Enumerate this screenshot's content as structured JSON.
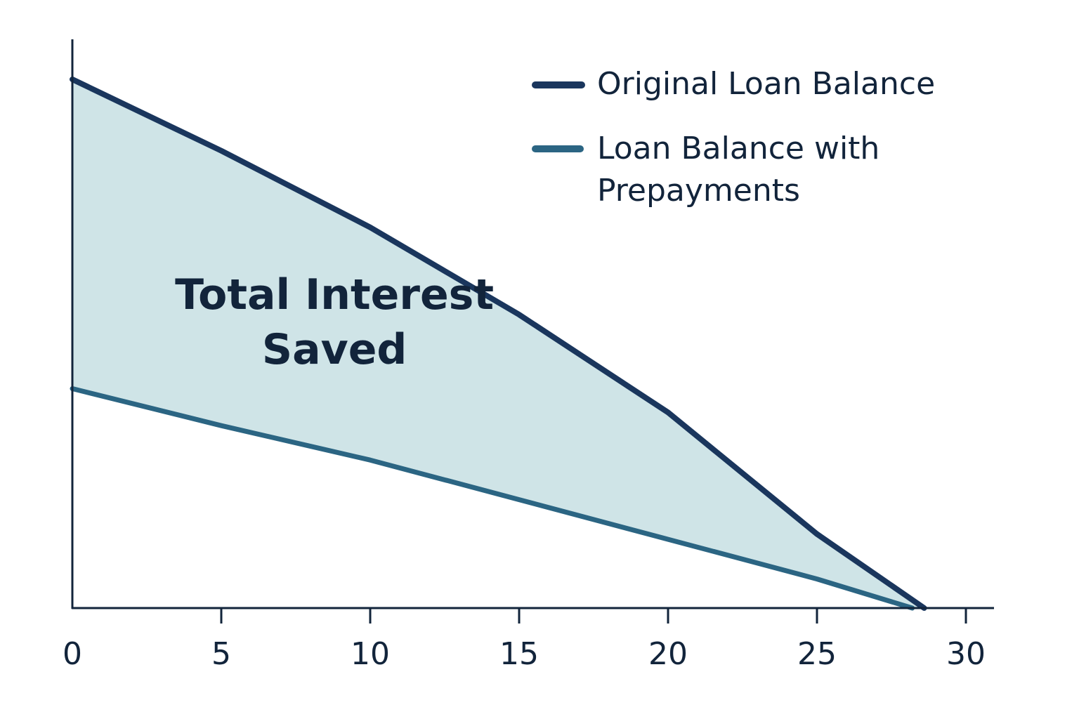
{
  "chart_data": {
    "type": "area",
    "title": "",
    "xlabel": "",
    "ylabel": "",
    "xlim": [
      0,
      31
    ],
    "ylim": [
      0,
      100
    ],
    "x_ticks": [
      0,
      5,
      10,
      15,
      20,
      25,
      30
    ],
    "x_tick_labels": [
      "0",
      "5",
      "10",
      "15",
      "20",
      "25",
      "30"
    ],
    "grid": false,
    "legend": {
      "placement": "top-right",
      "entries": [
        {
          "label": "Original Loan Balance",
          "color": "#1a365d"
        },
        {
          "label_lines": [
            "Loan Balance with",
            "Prepayments"
          ],
          "color": "#2b6583"
        }
      ]
    },
    "series": [
      {
        "name": "Original Loan Balance",
        "color": "#1a365d",
        "x": [
          0,
          5,
          10,
          15,
          20,
          25,
          28.6
        ],
        "y": [
          100,
          86.5,
          72,
          55.5,
          37,
          14,
          0
        ]
      },
      {
        "name": "Loan Balance with Prepayments",
        "color": "#2b6583",
        "x": [
          0,
          5,
          10,
          15,
          20,
          25,
          28.2
        ],
        "y": [
          41.5,
          34.5,
          28,
          20.5,
          13,
          5.5,
          0
        ]
      }
    ],
    "fill_between": {
      "color": "#cfe4e7"
    },
    "annotation": {
      "lines": [
        "Total Interest",
        "Saved"
      ],
      "x": 8.8,
      "y": 55
    }
  }
}
